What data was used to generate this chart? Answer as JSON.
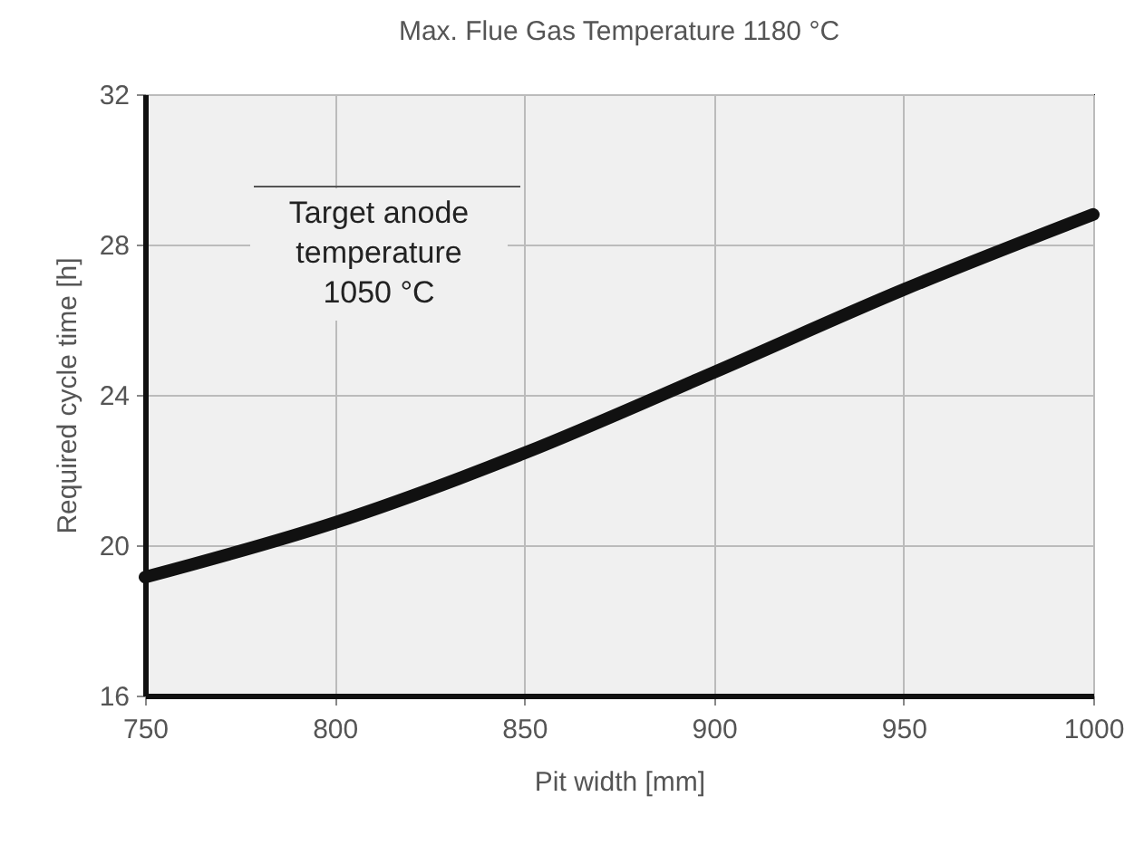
{
  "chart_data": {
    "type": "line",
    "title": "Max. Flue Gas Temperature 1180 °C",
    "xlabel": "Pit width [mm]",
    "ylabel": "Required cycle time [h]",
    "x": [
      750,
      800,
      850,
      900,
      950,
      1000
    ],
    "series": [
      {
        "color": "#111111",
        "values": [
          19.15,
          20.6,
          22.45,
          24.6,
          26.8,
          28.8
        ]
      }
    ],
    "xlim": [
      750,
      1000
    ],
    "xticks": [
      750,
      800,
      850,
      900,
      950,
      1000
    ],
    "ylim": [
      16,
      32
    ],
    "yticks": [
      16,
      20,
      24,
      28,
      32
    ],
    "grid": true,
    "legend": false,
    "marker": "none",
    "line_style": "solid",
    "annotations": [
      "Target anode temperature 1050 °C"
    ]
  }
}
